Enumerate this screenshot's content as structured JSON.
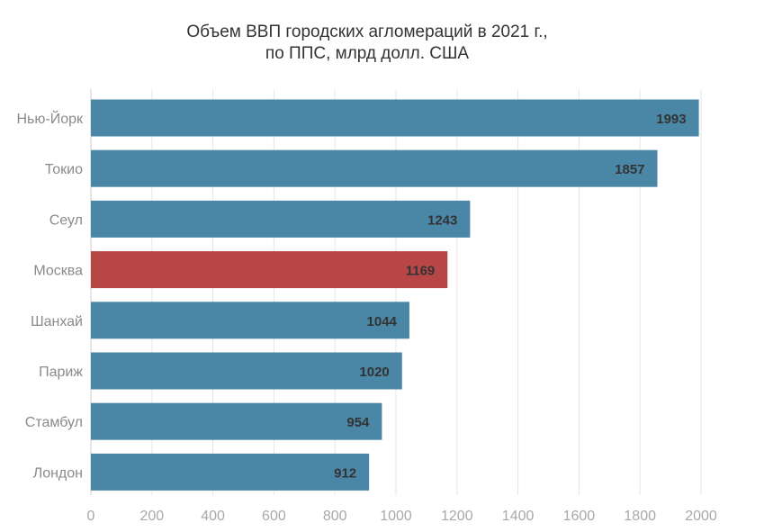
{
  "chart_data": {
    "type": "bar",
    "orientation": "horizontal",
    "title": [
      "Объем ВВП городских агломераций в 2021 г.,",
      "по ППС, млрд долл. США"
    ],
    "categories": [
      "Нью-Йорк",
      "Токио",
      "Сеул",
      "Москва",
      "Шанхай",
      "Париж",
      "Стамбул",
      "Лондон"
    ],
    "values": [
      1993,
      1857,
      1243,
      1169,
      1044,
      1020,
      954,
      912
    ],
    "value_labels": [
      "1993",
      "1857",
      "1243",
      "1169",
      "1044",
      "1020",
      "954",
      "912"
    ],
    "xlim": [
      0,
      2000
    ],
    "xticks": [
      0,
      200,
      400,
      600,
      800,
      1000,
      1200,
      1400,
      1600,
      1800,
      2000
    ],
    "xtick_labels": [
      "0",
      "200",
      "400",
      "600",
      "800",
      "1000",
      "1200",
      "1400",
      "1600",
      "1800",
      "2000"
    ],
    "xlabel": "",
    "ylabel": "",
    "grid": true,
    "colors": {
      "default": "#4a87a6",
      "highlight": "#b84646",
      "highlight_category": "Москва"
    }
  }
}
